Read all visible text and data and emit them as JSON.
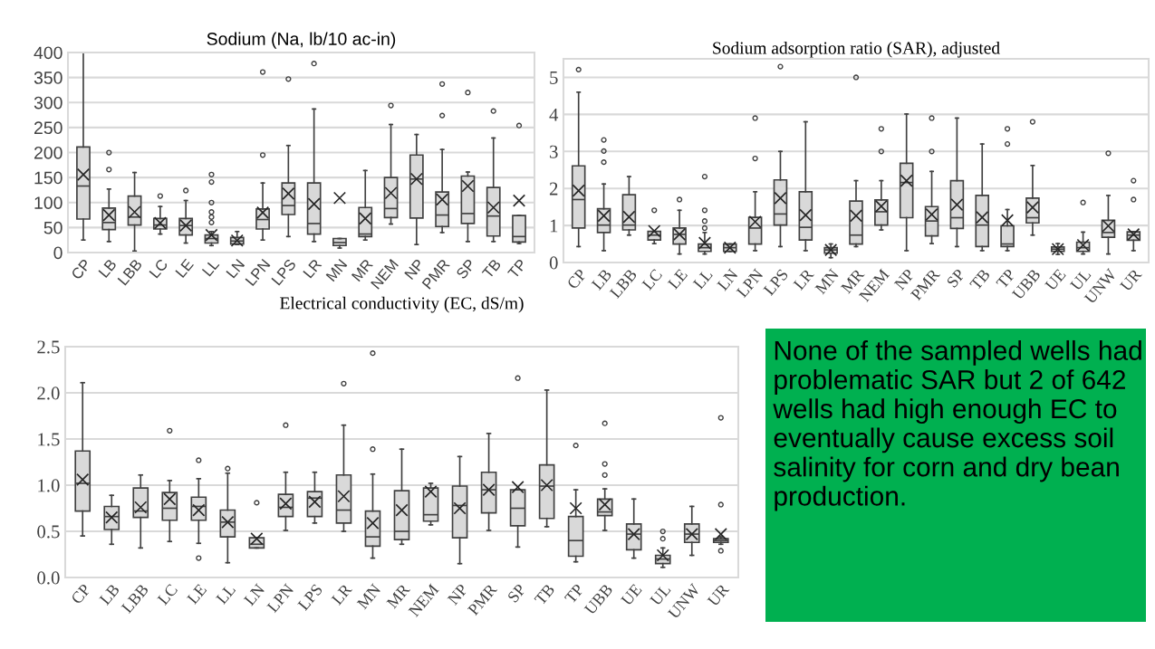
{
  "chart_data": [
    {
      "type": "box",
      "title": "Sodium (Na, lb/10 ac-in)",
      "color": "#d9d9d9",
      "grid": "y",
      "ylim": [
        0,
        400
      ],
      "yticks": [
        0,
        50,
        100,
        150,
        200,
        250,
        300,
        350,
        400
      ],
      "categories": [
        "CP",
        "LB",
        "LBB",
        "LC",
        "LE",
        "LL",
        "LN",
        "LPN",
        "LPS",
        "LR",
        "MN",
        "MR",
        "NEM",
        "NP",
        "PMR",
        "SP",
        "TB",
        "TP"
      ],
      "boxes": [
        {
          "low": 25,
          "q1": 67,
          "median": 133,
          "q3": 211,
          "high": 400,
          "mean": 156
        },
        {
          "low": 22,
          "q1": 46,
          "median": 60,
          "q3": 89,
          "high": 127,
          "mean": 75,
          "outliers": [
            166,
            200
          ]
        },
        {
          "low": 3,
          "q1": 55,
          "median": 71,
          "q3": 113,
          "high": 160,
          "mean": 81
        },
        {
          "low": 37,
          "q1": 47,
          "median": 55,
          "q3": 68,
          "high": 92,
          "mean": 59,
          "outliers": [
            113
          ]
        },
        {
          "low": 19,
          "q1": 35,
          "median": 54,
          "q3": 68,
          "high": 104,
          "mean": 54,
          "outliers": [
            124
          ]
        },
        {
          "low": 14,
          "q1": 19,
          "median": 28,
          "q3": 35,
          "high": 42,
          "mean": 35,
          "outliers": [
            60,
            71,
            81,
            100,
            141,
            156
          ]
        },
        {
          "low": 16,
          "q1": 17,
          "median": 23,
          "q3": 30,
          "high": 42,
          "mean": 24
        },
        {
          "low": 25,
          "q1": 47,
          "median": 66,
          "q3": 87,
          "high": 139,
          "mean": 80,
          "outliers": [
            195,
            361
          ]
        },
        {
          "low": 32,
          "q1": 76,
          "median": 94,
          "q3": 139,
          "high": 214,
          "mean": 118,
          "outliers": [
            347
          ]
        },
        {
          "low": 22,
          "q1": 37,
          "median": 58,
          "q3": 139,
          "high": 287,
          "mean": 97,
          "outliers": [
            378
          ]
        },
        {
          "low": 9,
          "q1": 14,
          "median": 20,
          "q3": 28,
          "high": 28,
          "mean": 109
        },
        {
          "low": 25,
          "q1": 32,
          "median": 37,
          "q3": 90,
          "high": 164,
          "mean": 68
        },
        {
          "low": 57,
          "q1": 70,
          "median": 88,
          "q3": 150,
          "high": 256,
          "mean": 119,
          "outliers": [
            294
          ]
        },
        {
          "low": 16,
          "q1": 69,
          "median": 147,
          "q3": 195,
          "high": 236,
          "mean": 147
        },
        {
          "low": 40,
          "q1": 52,
          "median": 75,
          "q3": 121,
          "high": 206,
          "mean": 106,
          "outliers": [
            274,
            337
          ]
        },
        {
          "low": 22,
          "q1": 58,
          "median": 78,
          "q3": 153,
          "high": 161,
          "mean": 133,
          "outliers": [
            320
          ]
        },
        {
          "low": 22,
          "q1": 33,
          "median": 73,
          "q3": 130,
          "high": 229,
          "mean": 90,
          "outliers": [
            283
          ]
        },
        {
          "low": 18,
          "q1": 21,
          "median": 32,
          "q3": 74,
          "high": 74,
          "mean": 104,
          "outliers": [
            254
          ]
        }
      ]
    },
    {
      "type": "box",
      "title": "Sodium adsorption ratio (SAR), adjusted",
      "color": "#d9d9d9",
      "grid": "y",
      "ylim": [
        0,
        5.5
      ],
      "yticks": [
        0,
        1,
        2,
        3,
        4,
        5
      ],
      "categories": [
        "CP",
        "LB",
        "LBB",
        "LC",
        "LE",
        "LL",
        "LN",
        "LPN",
        "LPS",
        "LR",
        "MN",
        "MR",
        "NEM",
        "NP",
        "PMR",
        "SP",
        "TB",
        "TP",
        "UBB",
        "UE",
        "UL",
        "UNW",
        "UR"
      ],
      "boxes": [
        {
          "low": 0.43,
          "q1": 0.93,
          "median": 1.7,
          "q3": 2.61,
          "high": 4.6,
          "mean": 1.94,
          "outliers": [
            5.21
          ]
        },
        {
          "low": 0.32,
          "q1": 0.81,
          "median": 1.01,
          "q3": 1.45,
          "high": 2.12,
          "mean": 1.26,
          "outliers": [
            2.71,
            3.01,
            3.31
          ]
        },
        {
          "low": 0.74,
          "q1": 0.88,
          "median": 1.01,
          "q3": 1.83,
          "high": 2.32,
          "mean": 1.23
        },
        {
          "low": 0.51,
          "q1": 0.61,
          "median": 0.74,
          "q3": 0.84,
          "high": 0.84,
          "mean": 0.85,
          "outliers": [
            1.41
          ]
        },
        {
          "low": 0.23,
          "q1": 0.5,
          "median": 0.76,
          "q3": 0.93,
          "high": 1.41,
          "mean": 0.76,
          "outliers": [
            1.7
          ]
        },
        {
          "low": 0.23,
          "q1": 0.3,
          "median": 0.4,
          "q3": 0.5,
          "high": 0.81,
          "mean": 0.53,
          "outliers": [
            0.93,
            1.12,
            1.41,
            2.32
          ]
        },
        {
          "low": 0.3,
          "q1": 0.3,
          "median": 0.4,
          "q3": 0.5,
          "high": 0.5,
          "mean": 0.4
        },
        {
          "low": 0.32,
          "q1": 0.5,
          "median": 0.93,
          "q3": 1.22,
          "high": 1.91,
          "mean": 1.1,
          "outliers": [
            2.81,
            3.9
          ]
        },
        {
          "low": 0.43,
          "q1": 1.01,
          "median": 1.31,
          "q3": 2.23,
          "high": 3.0,
          "mean": 1.74,
          "outliers": [
            5.29
          ]
        },
        {
          "low": 0.32,
          "q1": 0.61,
          "median": 0.95,
          "q3": 1.91,
          "high": 3.8,
          "mean": 1.28
        },
        {
          "low": 0.13,
          "q1": 0.25,
          "median": 0.34,
          "q3": 0.4,
          "high": 0.5,
          "mean": 0.34
        },
        {
          "low": 0.43,
          "q1": 0.5,
          "median": 0.74,
          "q3": 1.66,
          "high": 2.21,
          "mean": 1.26,
          "outliers": [
            5.0
          ]
        },
        {
          "low": 0.88,
          "q1": 1.01,
          "median": 1.37,
          "q3": 1.69,
          "high": 2.21,
          "mean": 1.52,
          "outliers": [
            3.0,
            3.61
          ]
        },
        {
          "low": 0.32,
          "q1": 1.21,
          "median": 2.16,
          "q3": 2.68,
          "high": 4.01,
          "mean": 2.21
        },
        {
          "low": 0.51,
          "q1": 0.72,
          "median": 1.12,
          "q3": 1.51,
          "high": 2.46,
          "mean": 1.3,
          "outliers": [
            3.0,
            3.9
          ]
        },
        {
          "low": 0.43,
          "q1": 0.92,
          "median": 1.21,
          "q3": 2.21,
          "high": 3.9,
          "mean": 1.56
        },
        {
          "low": 0.32,
          "q1": 0.43,
          "median": 1.01,
          "q3": 1.81,
          "high": 3.2,
          "mean": 1.22
        },
        {
          "low": 0.32,
          "q1": 0.43,
          "median": 0.5,
          "q3": 0.99,
          "high": 1.43,
          "mean": 1.14,
          "outliers": [
            3.2,
            3.61
          ]
        },
        {
          "low": 0.74,
          "q1": 1.07,
          "median": 1.21,
          "q3": 1.74,
          "high": 2.62,
          "mean": 1.49,
          "outliers": [
            3.8
          ]
        },
        {
          "low": 0.22,
          "q1": 0.3,
          "median": 0.36,
          "q3": 0.42,
          "high": 0.51,
          "mean": 0.36
        },
        {
          "low": 0.23,
          "q1": 0.3,
          "median": 0.4,
          "q3": 0.55,
          "high": 0.82,
          "mean": 0.47,
          "outliers": [
            1.62
          ]
        },
        {
          "low": 0.23,
          "q1": 0.68,
          "median": 0.81,
          "q3": 1.14,
          "high": 1.81,
          "mean": 0.99,
          "outliers": [
            2.95
          ]
        },
        {
          "low": 0.32,
          "q1": 0.6,
          "median": 0.74,
          "q3": 0.83,
          "high": 0.83,
          "mean": 0.76,
          "outliers": [
            1.7,
            2.21
          ]
        }
      ]
    },
    {
      "type": "box",
      "title": "Electrical conductivity (EC, dS/m)",
      "color": "#d9d9d9",
      "grid": "y",
      "ylim": [
        0.0,
        2.5
      ],
      "yticks": [
        {
          "value": 0,
          "label": "0.0"
        },
        0.5,
        {
          "value": 1,
          "label": "1.0"
        },
        1.5,
        {
          "value": 2,
          "label": "2.0"
        },
        2.5
      ],
      "categories": [
        "CP",
        "LB",
        "LBB",
        "LC",
        "LE",
        "LL",
        "LN",
        "LPN",
        "LPS",
        "LR",
        "MN",
        "MR",
        "NEM",
        "NP",
        "PMR",
        "SP",
        "TB",
        "TP",
        "UBB",
        "UE",
        "UL",
        "UNW",
        "UR"
      ],
      "boxes": [
        {
          "low": 0.45,
          "q1": 0.72,
          "median": 1.02,
          "q3": 1.37,
          "high": 2.11,
          "mean": 1.06
        },
        {
          "low": 0.36,
          "q1": 0.52,
          "median": 0.66,
          "q3": 0.77,
          "high": 0.89,
          "mean": 0.65
        },
        {
          "low": 0.32,
          "q1": 0.65,
          "median": 0.72,
          "q3": 0.97,
          "high": 1.11,
          "mean": 0.76
        },
        {
          "low": 0.39,
          "q1": 0.62,
          "median": 0.75,
          "q3": 0.92,
          "high": 1.05,
          "mean": 0.85,
          "outliers": [
            1.59
          ]
        },
        {
          "low": 0.37,
          "q1": 0.62,
          "median": 0.77,
          "q3": 0.87,
          "high": 1.07,
          "mean": 0.73,
          "outliers": [
            0.21,
            1.27
          ]
        },
        {
          "low": 0.16,
          "q1": 0.44,
          "median": 0.6,
          "q3": 0.73,
          "high": 1.13,
          "mean": 0.6,
          "outliers": [
            1.18
          ]
        },
        {
          "low": 0.32,
          "q1": 0.32,
          "median": 0.36,
          "q3": 0.43,
          "high": 0.43,
          "mean": 0.42,
          "outliers": [
            0.81
          ]
        },
        {
          "low": 0.51,
          "q1": 0.66,
          "median": 0.76,
          "q3": 0.9,
          "high": 1.14,
          "mean": 0.8,
          "outliers": [
            1.65
          ]
        },
        {
          "low": 0.59,
          "q1": 0.66,
          "median": 0.86,
          "q3": 0.93,
          "high": 1.14,
          "mean": 0.82
        },
        {
          "low": 0.5,
          "q1": 0.59,
          "median": 0.73,
          "q3": 1.11,
          "high": 1.65,
          "mean": 0.88,
          "outliers": [
            2.1
          ]
        },
        {
          "low": 0.21,
          "q1": 0.34,
          "median": 0.44,
          "q3": 0.72,
          "high": 1.12,
          "mean": 0.59,
          "outliers": [
            1.39,
            2.43
          ]
        },
        {
          "low": 0.36,
          "q1": 0.41,
          "median": 0.5,
          "q3": 0.94,
          "high": 1.39,
          "mean": 0.73
        },
        {
          "low": 0.57,
          "q1": 0.61,
          "median": 0.68,
          "q3": 0.97,
          "high": 1.02,
          "mean": 0.93
        },
        {
          "low": 0.15,
          "q1": 0.43,
          "median": 0.78,
          "q3": 0.99,
          "high": 1.31,
          "mean": 0.75
        },
        {
          "low": 0.51,
          "q1": 0.7,
          "median": 0.95,
          "q3": 1.14,
          "high": 1.56,
          "mean": 0.95
        },
        {
          "low": 0.33,
          "q1": 0.56,
          "median": 0.75,
          "q3": 0.95,
          "high": 0.95,
          "mean": 0.98,
          "outliers": [
            2.16
          ]
        },
        {
          "low": 0.55,
          "q1": 0.64,
          "median": 0.99,
          "q3": 1.22,
          "high": 2.03,
          "mean": 1.0
        },
        {
          "low": 0.17,
          "q1": 0.23,
          "median": 0.4,
          "q3": 0.66,
          "high": 0.95,
          "mean": 0.75,
          "outliers": [
            1.43
          ]
        },
        {
          "low": 0.51,
          "q1": 0.67,
          "median": 0.71,
          "q3": 0.85,
          "high": 0.96,
          "mean": 0.79,
          "outliers": [
            1.11,
            1.23,
            1.67
          ]
        },
        {
          "low": 0.21,
          "q1": 0.3,
          "median": 0.47,
          "q3": 0.58,
          "high": 0.85,
          "mean": 0.47
        },
        {
          "low": 0.11,
          "q1": 0.15,
          "median": 0.2,
          "q3": 0.24,
          "high": 0.32,
          "mean": 0.24,
          "outliers": [
            0.42,
            0.5
          ]
        },
        {
          "low": 0.24,
          "q1": 0.38,
          "median": 0.47,
          "q3": 0.58,
          "high": 0.77,
          "mean": 0.47
        },
        {
          "low": 0.36,
          "q1": 0.38,
          "median": 0.4,
          "q3": 0.42,
          "high": 0.44,
          "mean": 0.47,
          "outliers": [
            0.29,
            0.79,
            1.73
          ]
        }
      ]
    },
    {
      "type": "other",
      "color": "#00b050",
      "annotations": [
        "None of the sampled wells had problematic SAR but 2 of 642 wells had high enough EC to eventually cause excess soil salinity for corn and dry bean production."
      ]
    }
  ]
}
